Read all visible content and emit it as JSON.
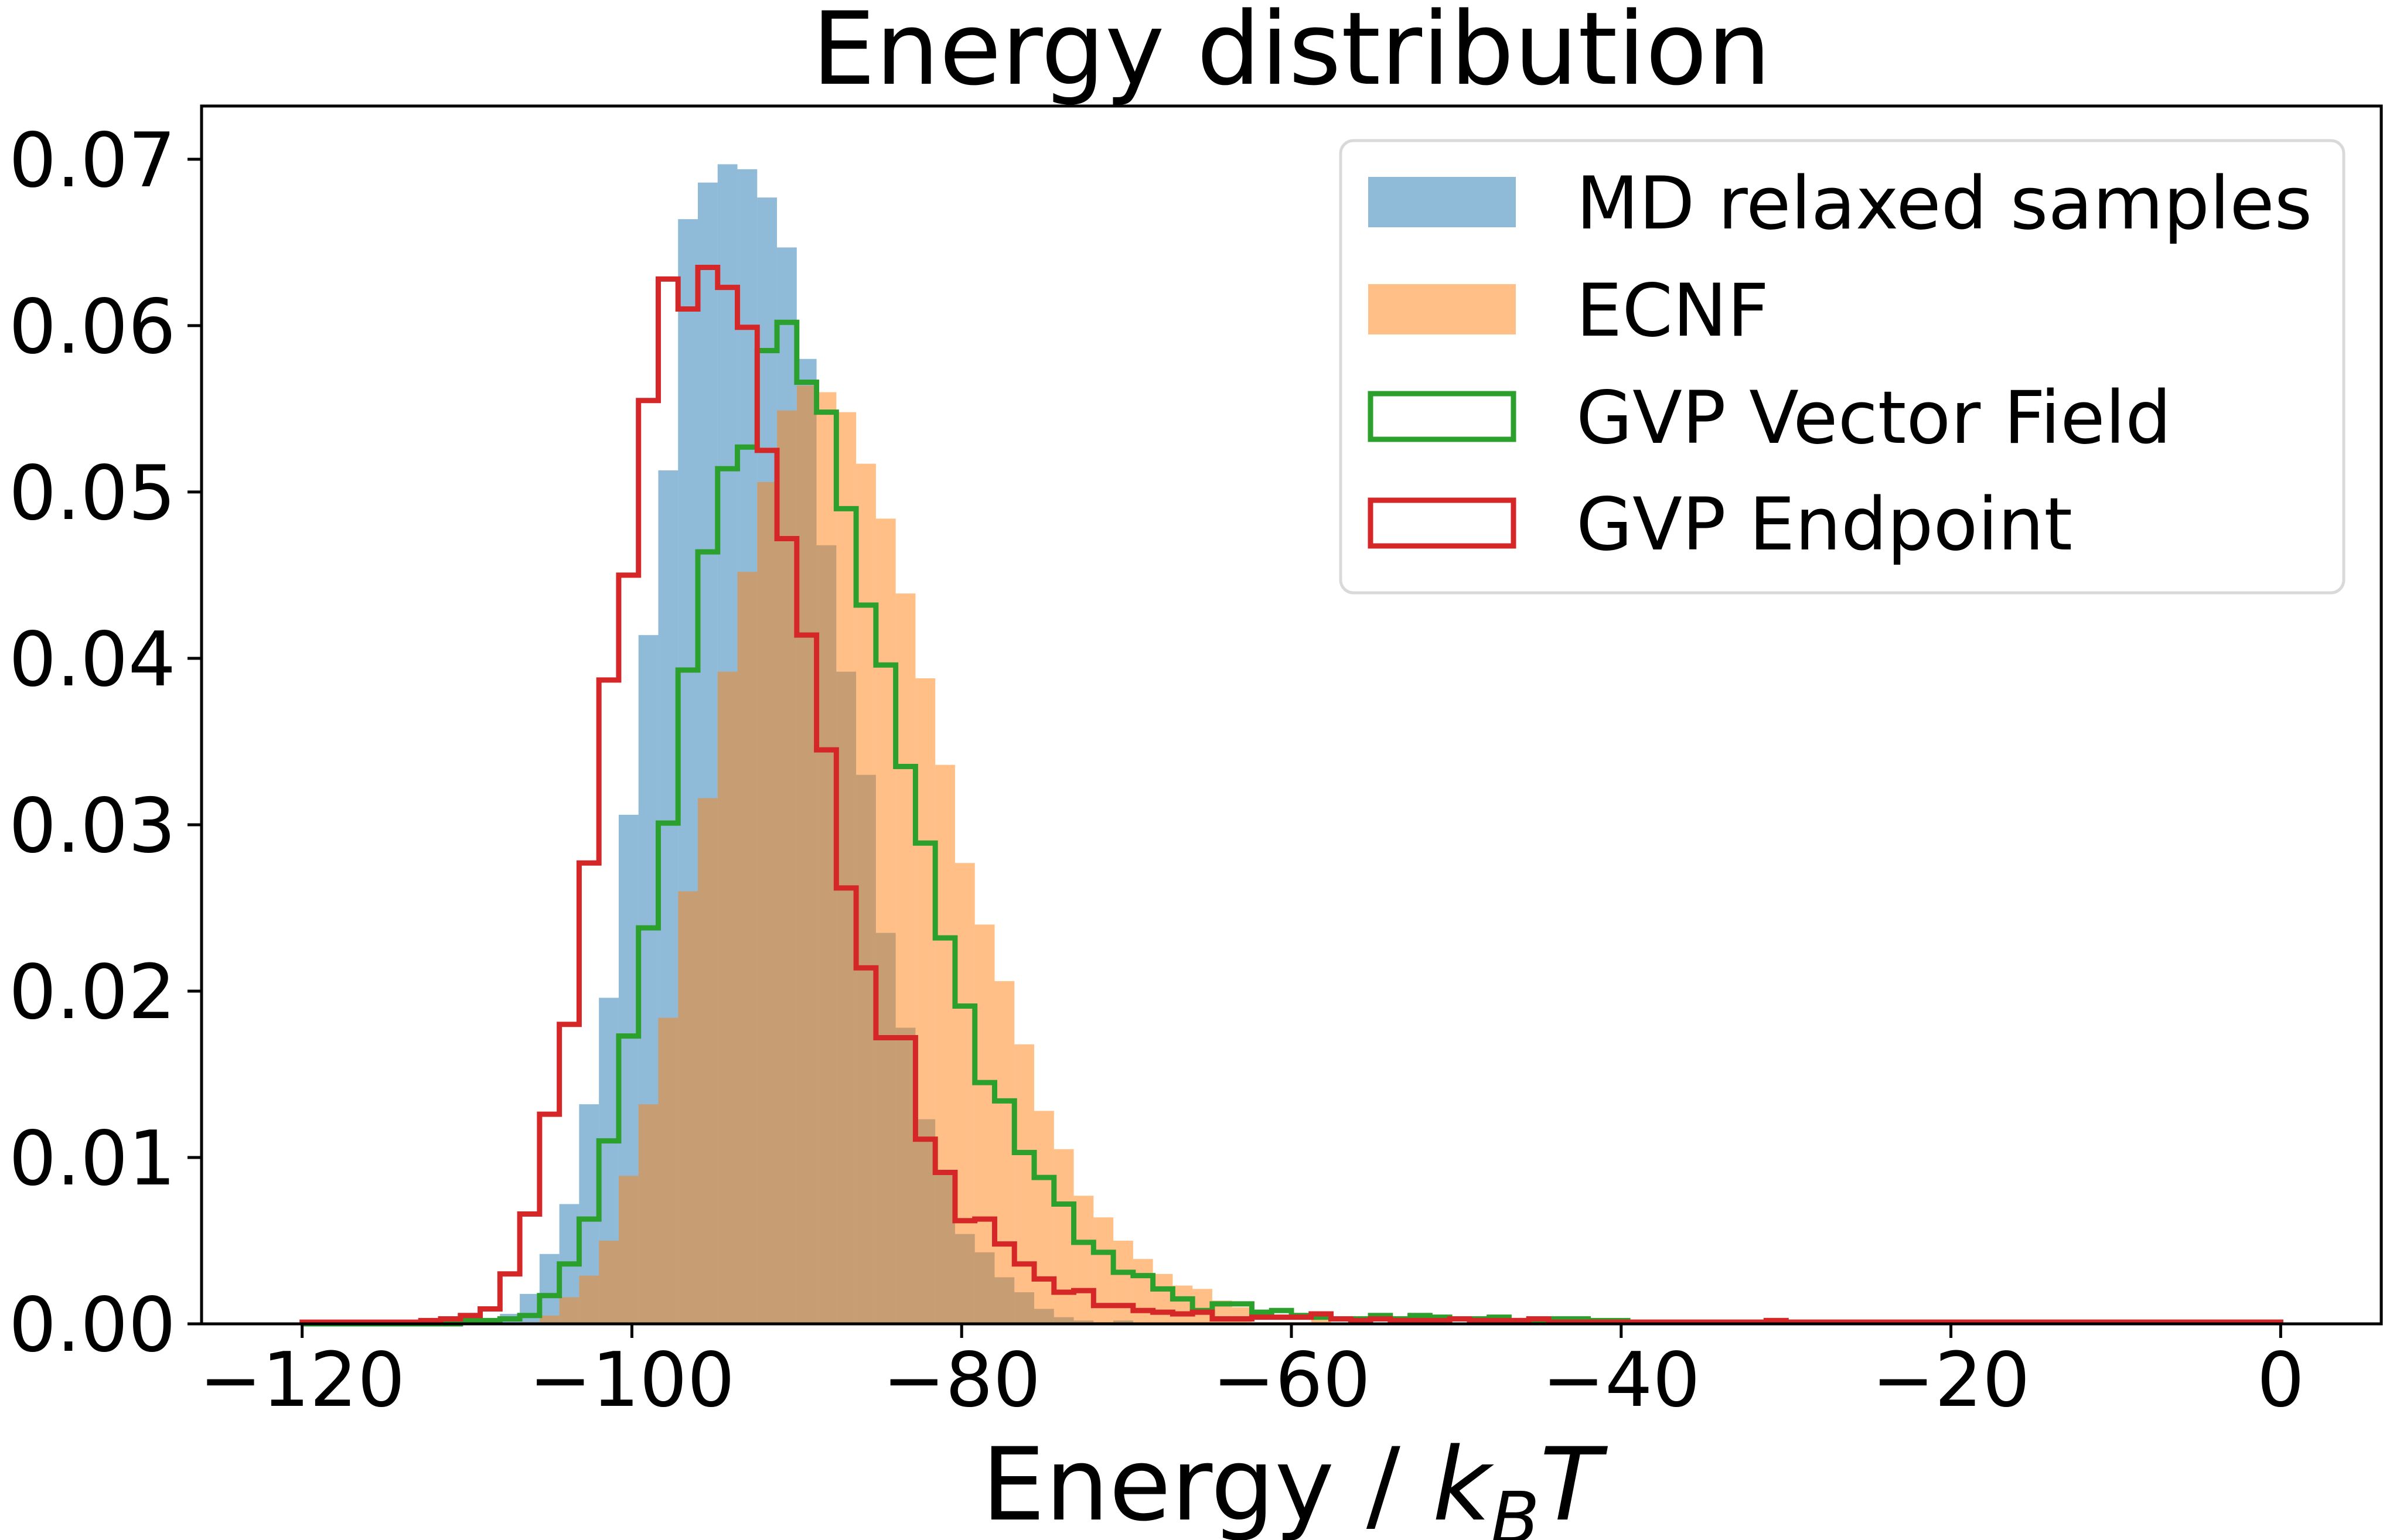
{
  "chart_data": {
    "type": "histogram",
    "title": "Energy distribution",
    "xlabel": "Energy / k_B T",
    "xlabel_parts": {
      "main": "Energy / ",
      "k": "k",
      "sub": "B",
      "T": "T"
    },
    "ylabel": "",
    "xlim": [
      -126.1,
      6.1
    ],
    "ylim": [
      0,
      0.0732
    ],
    "grid": false,
    "legend_position": "top-right",
    "bins": {
      "start": -120,
      "stop": 0,
      "count": 100,
      "width": 1.2
    },
    "xticks": [
      {
        "value": -120,
        "label": "−120"
      },
      {
        "value": -100,
        "label": "−100"
      },
      {
        "value": -80,
        "label": "−80"
      },
      {
        "value": -60,
        "label": "−60"
      },
      {
        "value": -40,
        "label": "−40"
      },
      {
        "value": -20,
        "label": "−20"
      },
      {
        "value": 0,
        "label": "0"
      }
    ],
    "yticks": [
      {
        "value": 0.0,
        "label": "0.00"
      },
      {
        "value": 0.01,
        "label": "0.01"
      },
      {
        "value": 0.02,
        "label": "0.02"
      },
      {
        "value": 0.03,
        "label": "0.03"
      },
      {
        "value": 0.04,
        "label": "0.04"
      },
      {
        "value": 0.05,
        "label": "0.05"
      },
      {
        "value": 0.06,
        "label": "0.06"
      },
      {
        "value": 0.07,
        "label": "0.07"
      }
    ],
    "series": [
      {
        "name": "MD relaxed samples",
        "style": "filled",
        "color": "#1f77b4",
        "alpha": 0.5,
        "values": [
          0,
          0,
          0,
          0,
          0,
          0,
          0,
          0,
          0.0001,
          0.0003,
          0.0006,
          0.0018,
          0.0042,
          0.0072,
          0.0132,
          0.0196,
          0.0306,
          0.0414,
          0.0513,
          0.0664,
          0.0686,
          0.0697,
          0.0694,
          0.0677,
          0.0647,
          0.058,
          0.0468,
          0.0392,
          0.033,
          0.0235,
          0.0178,
          0.0123,
          0.0092,
          0.0054,
          0.0043,
          0.0028,
          0.0019,
          0.0009,
          0.0004,
          0.0002,
          0.0001,
          0.0002,
          0,
          0,
          0,
          0,
          0,
          0,
          0,
          0,
          0,
          0,
          0,
          0,
          0,
          0,
          0,
          0,
          0,
          0,
          0,
          0,
          0,
          0,
          0,
          0,
          0,
          0,
          0,
          0,
          0,
          0,
          0,
          0,
          0,
          0,
          0,
          0,
          0,
          0,
          0,
          0,
          0,
          0,
          0,
          0,
          0,
          0,
          0,
          0,
          0,
          0,
          0,
          0,
          0,
          0,
          0,
          0,
          0,
          0
        ]
      },
      {
        "name": "ECNF",
        "style": "filled",
        "color": "#ff7f0e",
        "alpha": 0.5,
        "values": [
          0,
          0,
          0,
          0,
          0,
          0,
          0,
          0,
          0,
          0,
          0,
          0.0001,
          0.0005,
          0.0016,
          0.0029,
          0.005,
          0.0089,
          0.0132,
          0.0184,
          0.026,
          0.0316,
          0.0392,
          0.0452,
          0.0506,
          0.0549,
          0.0564,
          0.056,
          0.0548,
          0.0517,
          0.0484,
          0.0439,
          0.0388,
          0.0336,
          0.0277,
          0.024,
          0.0206,
          0.0168,
          0.0128,
          0.0105,
          0.0077,
          0.0064,
          0.005,
          0.0039,
          0.003,
          0.0023,
          0.0021,
          0.0014,
          0.001,
          0.0001,
          0.0001,
          0.0001,
          0.0003,
          0,
          0,
          0,
          0,
          0,
          0,
          0,
          0,
          0,
          0,
          0,
          0,
          0,
          0,
          0,
          0,
          0,
          0,
          0,
          0,
          0,
          0,
          0,
          0,
          0,
          0,
          0,
          0,
          0,
          0,
          0,
          0,
          0,
          0,
          0,
          0,
          0,
          0,
          0,
          0,
          0,
          0,
          0,
          0,
          0,
          0,
          0,
          0
        ]
      },
      {
        "name": "GVP Vector Field",
        "style": "step",
        "color": "#2ca02c",
        "values": [
          0,
          0,
          0,
          0,
          0,
          0,
          0,
          0,
          0.0002,
          0.0002,
          0.0003,
          0.0005,
          0.0017,
          0.0036,
          0.0063,
          0.011,
          0.0173,
          0.0238,
          0.0301,
          0.0393,
          0.0464,
          0.0514,
          0.0527,
          0.0585,
          0.0602,
          0.0566,
          0.0548,
          0.049,
          0.0432,
          0.0396,
          0.0335,
          0.0289,
          0.0232,
          0.0191,
          0.0145,
          0.0134,
          0.0103,
          0.0088,
          0.0072,
          0.0049,
          0.0043,
          0.0031,
          0.0029,
          0.0021,
          0.0015,
          0.0008,
          0.0012,
          0.0012,
          0.0007,
          0.0008,
          0.0005,
          0.0004,
          0.0003,
          0.0003,
          0.0005,
          0.0003,
          0.0005,
          0.0004,
          0.0003,
          0.0003,
          0.0004,
          0.0002,
          0.0002,
          0.0003,
          0.0003,
          0.0002,
          0.0002,
          0.0001,
          0.0001,
          0.0001,
          0.0001,
          0.0001,
          0.0001,
          0.0001,
          0.0002,
          0.0001,
          0.0001,
          0.0001,
          0.0001,
          0.0001,
          0.0001,
          0.0001,
          0.0001,
          0.0001,
          0.0001,
          0.0001,
          0.0001,
          0.0001,
          0.0001,
          0.0001,
          0.0001,
          0.0001,
          0.0001,
          0.0001,
          0.0001,
          0.0001,
          0.0001,
          0.0001,
          0.0001,
          0.0001
        ]
      },
      {
        "name": "GVP Endpoint",
        "style": "step",
        "color": "#d62728",
        "values": [
          0.0001,
          0.0001,
          0.0001,
          0.0001,
          0.0001,
          0.0001,
          0.0002,
          0.0003,
          0.0005,
          0.0009,
          0.003,
          0.0066,
          0.0126,
          0.018,
          0.0277,
          0.0387,
          0.045,
          0.0555,
          0.0628,
          0.061,
          0.0635,
          0.0623,
          0.0599,
          0.0525,
          0.0472,
          0.0414,
          0.0345,
          0.0262,
          0.0214,
          0.0172,
          0.0172,
          0.0111,
          0.0091,
          0.0062,
          0.0063,
          0.0048,
          0.0036,
          0.0027,
          0.0019,
          0.002,
          0.0011,
          0.0011,
          0.0008,
          0.0007,
          0.0006,
          0.0007,
          0.0003,
          0.0003,
          0.0004,
          0.0004,
          0.0004,
          0.0006,
          0.0003,
          0.0002,
          0.0003,
          0.0002,
          0.0002,
          0.0002,
          0.0003,
          0.0002,
          0.0002,
          0.0002,
          0.0003,
          0.0001,
          0.0001,
          0.0001,
          0.0001,
          0.0001,
          0.0001,
          0.0001,
          0.0001,
          0.0001,
          0.0001,
          0.0001,
          0.0002,
          0.0001,
          0.0001,
          0.0001,
          0.0001,
          0.0001,
          0.0001,
          0.0001,
          0.0001,
          0.0001,
          0.0001,
          0.0001,
          0.0001,
          0.0001,
          0.0001,
          0.0001,
          0.0001,
          0.0001,
          0.0001,
          0.0001,
          0.0001,
          0.0001,
          0.0001,
          0.0001,
          0.0001,
          0.0001
        ]
      }
    ]
  }
}
